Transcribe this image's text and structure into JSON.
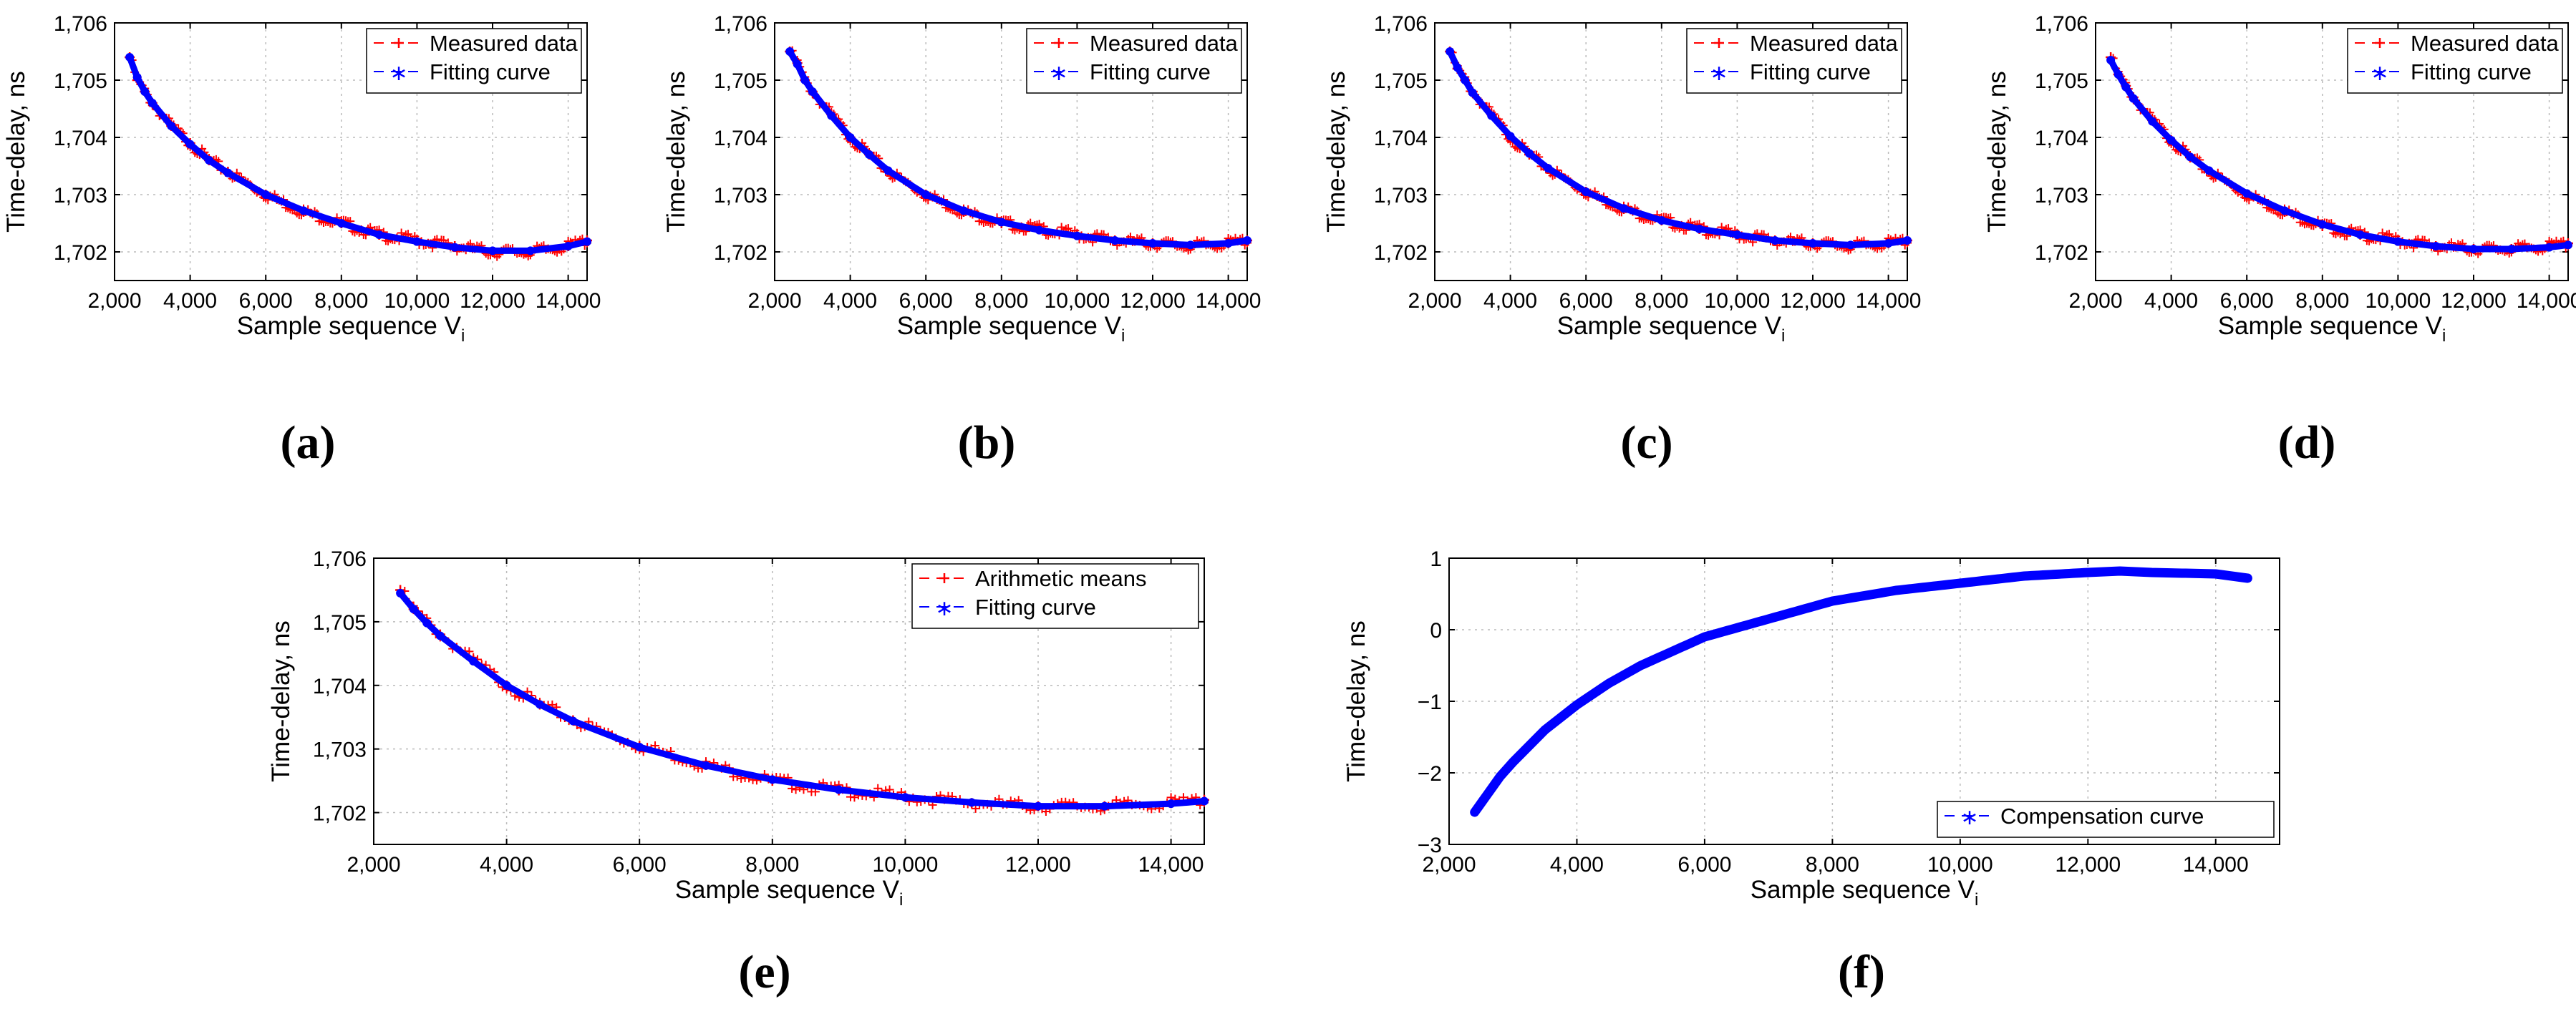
{
  "chart_data": [
    {
      "panel": "(a)",
      "type": "scatter",
      "xlabel": "Sample sequence V",
      "xlabel_sub": "i",
      "ylabel": "Time-delay, ns",
      "xlim": [
        2000,
        14500
      ],
      "ylim": [
        1701.5,
        1706
      ],
      "xticks": [
        "2,000",
        "4,000",
        "6,000",
        "8,000",
        "10,000",
        "12,000",
        "14,000"
      ],
      "yticks": [
        "1,702",
        "1,703",
        "1,704",
        "1,705",
        "1,706"
      ],
      "legend": {
        "position": "top-right",
        "entries": [
          "Measured data",
          "Fitting curve"
        ]
      },
      "series": [
        {
          "name": "Measured data",
          "marker": "+",
          "color": "#ff0000",
          "x": [
            2400,
            2600,
            2800,
            3000,
            3500,
            4000,
            4500,
            5000,
            6000,
            7000,
            8000,
            9000,
            10000,
            11000,
            12000,
            13000,
            14000,
            14500
          ],
          "y": [
            1705.4,
            1705.0,
            1704.8,
            1704.6,
            1704.2,
            1703.9,
            1703.6,
            1703.4,
            1703.0,
            1702.7,
            1702.5,
            1702.3,
            1702.2,
            1702.1,
            1702.0,
            1702.0,
            1702.1,
            1702.2
          ]
        },
        {
          "name": "Fitting curve",
          "marker": "*",
          "color": "#0000ff",
          "x": [
            2400,
            2600,
            2800,
            3000,
            3500,
            4000,
            4500,
            5000,
            6000,
            7000,
            8000,
            9000,
            10000,
            11000,
            12000,
            13000,
            14000,
            14500
          ],
          "y": [
            1705.4,
            1705.05,
            1704.8,
            1704.6,
            1704.2,
            1703.88,
            1703.6,
            1703.38,
            1703.0,
            1702.72,
            1702.5,
            1702.3,
            1702.18,
            1702.08,
            1702.02,
            1702.02,
            1702.1,
            1702.18
          ]
        }
      ]
    },
    {
      "panel": "(b)",
      "type": "scatter",
      "xlabel": "Sample sequence V",
      "xlabel_sub": "i",
      "ylabel": "Time-delay, ns",
      "xlim": [
        2000,
        14500
      ],
      "ylim": [
        1701.5,
        1706
      ],
      "xticks": [
        "2,000",
        "4,000",
        "6,000",
        "8,000",
        "10,000",
        "12,000",
        "14,000"
      ],
      "yticks": [
        "1,702",
        "1,703",
        "1,704",
        "1,705",
        "1,706"
      ],
      "legend": {
        "position": "top-right",
        "entries": [
          "Measured data",
          "Fitting curve"
        ]
      },
      "series": [
        {
          "name": "Measured data",
          "marker": "+",
          "color": "#ff0000",
          "x": [
            2400,
            2600,
            2800,
            3000,
            3500,
            4000,
            4500,
            5000,
            6000,
            7000,
            8000,
            9000,
            10000,
            11000,
            12000,
            13000,
            14000,
            14500
          ],
          "y": [
            1705.5,
            1705.3,
            1705.0,
            1704.8,
            1704.4,
            1704.0,
            1703.7,
            1703.4,
            1703.0,
            1702.7,
            1702.5,
            1702.4,
            1702.3,
            1702.2,
            1702.15,
            1702.1,
            1702.15,
            1702.2
          ]
        },
        {
          "name": "Fitting curve",
          "marker": "*",
          "color": "#0000ff",
          "x": [
            2400,
            2600,
            2800,
            3000,
            3500,
            4000,
            4500,
            5000,
            6000,
            7000,
            8000,
            9000,
            10000,
            11000,
            12000,
            13000,
            14000,
            14500
          ],
          "y": [
            1705.5,
            1705.28,
            1705.0,
            1704.8,
            1704.38,
            1704.0,
            1703.7,
            1703.42,
            1703.0,
            1702.72,
            1702.52,
            1702.38,
            1702.28,
            1702.2,
            1702.15,
            1702.12,
            1702.15,
            1702.2
          ]
        }
      ]
    },
    {
      "panel": "(c)",
      "type": "scatter",
      "xlabel": "Sample sequence V",
      "xlabel_sub": "i",
      "ylabel": "Time-delay, ns",
      "xlim": [
        2000,
        14500
      ],
      "ylim": [
        1701.5,
        1706
      ],
      "xticks": [
        "2,000",
        "4,000",
        "6,000",
        "8,000",
        "10,000",
        "12,000",
        "14,000"
      ],
      "yticks": [
        "1,702",
        "1,703",
        "1,704",
        "1,705",
        "1,706"
      ],
      "legend": {
        "position": "top-right",
        "entries": [
          "Measured data",
          "Fitting curve"
        ]
      },
      "series": [
        {
          "name": "Measured data",
          "marker": "+",
          "color": "#ff0000",
          "x": [
            2400,
            2600,
            2800,
            3000,
            3500,
            4000,
            4500,
            5000,
            6000,
            7000,
            8000,
            9000,
            10000,
            11000,
            12000,
            13000,
            14000,
            14500
          ],
          "y": [
            1705.5,
            1705.2,
            1705.0,
            1704.8,
            1704.4,
            1704.0,
            1703.7,
            1703.45,
            1703.05,
            1702.75,
            1702.55,
            1702.4,
            1702.3,
            1702.2,
            1702.15,
            1702.1,
            1702.15,
            1702.2
          ]
        },
        {
          "name": "Fitting curve",
          "marker": "*",
          "color": "#0000ff",
          "x": [
            2400,
            2600,
            2800,
            3000,
            3500,
            4000,
            4500,
            5000,
            6000,
            7000,
            8000,
            9000,
            10000,
            11000,
            12000,
            13000,
            14000,
            14500
          ],
          "y": [
            1705.5,
            1705.22,
            1705.0,
            1704.78,
            1704.38,
            1704.02,
            1703.72,
            1703.46,
            1703.05,
            1702.76,
            1702.55,
            1702.4,
            1702.3,
            1702.2,
            1702.15,
            1702.12,
            1702.15,
            1702.2
          ]
        }
      ]
    },
    {
      "panel": "(d)",
      "type": "scatter",
      "xlabel": "Sample sequence V",
      "xlabel_sub": "i",
      "ylabel": "Time-delay, ns",
      "xlim": [
        2000,
        14500
      ],
      "ylim": [
        1701.5,
        1706
      ],
      "xticks": [
        "2,000",
        "4,000",
        "6,000",
        "8,000",
        "10,000",
        "12,000",
        "14,000"
      ],
      "yticks": [
        "1,702",
        "1,703",
        "1,704",
        "1,705",
        "1,706"
      ],
      "legend": {
        "position": "top-right",
        "entries": [
          "Measured data",
          "Fitting curve"
        ]
      },
      "series": [
        {
          "name": "Measured data",
          "marker": "+",
          "color": "#ff0000",
          "x": [
            2400,
            2600,
            2800,
            3000,
            3500,
            4000,
            4500,
            5000,
            6000,
            7000,
            8000,
            9000,
            10000,
            11000,
            12000,
            13000,
            14000,
            14500
          ],
          "y": [
            1705.4,
            1705.1,
            1704.9,
            1704.7,
            1704.3,
            1703.95,
            1703.65,
            1703.4,
            1703.0,
            1702.7,
            1702.45,
            1702.3,
            1702.2,
            1702.1,
            1702.05,
            1702.05,
            1702.1,
            1702.15
          ]
        },
        {
          "name": "Fitting curve",
          "marker": "*",
          "color": "#0000ff",
          "x": [
            2400,
            2600,
            2800,
            3000,
            3500,
            4000,
            4500,
            5000,
            6000,
            7000,
            8000,
            9000,
            10000,
            11000,
            12000,
            13000,
            14000,
            14500
          ],
          "y": [
            1705.35,
            1705.1,
            1704.88,
            1704.68,
            1704.28,
            1703.95,
            1703.66,
            1703.42,
            1703.02,
            1702.72,
            1702.48,
            1702.3,
            1702.18,
            1702.1,
            1702.05,
            1702.05,
            1702.08,
            1702.12
          ]
        }
      ]
    },
    {
      "panel": "(e)",
      "type": "scatter",
      "xlabel": "Sample sequence V",
      "xlabel_sub": "i",
      "ylabel": "Time-delay, ns",
      "xlim": [
        2000,
        14500
      ],
      "ylim": [
        1701.5,
        1706
      ],
      "xticks": [
        "2,000",
        "4,000",
        "6,000",
        "8,000",
        "10,000",
        "12,000",
        "14,000"
      ],
      "yticks": [
        "1,702",
        "1,703",
        "1,704",
        "1,705",
        "1,706"
      ],
      "legend": {
        "position": "top-right",
        "entries": [
          "Arithmetic means",
          "Fitting curve"
        ]
      },
      "series": [
        {
          "name": "Arithmetic means",
          "marker": "+",
          "color": "#ff0000",
          "x": [
            2400,
            2600,
            2800,
            3000,
            3500,
            4000,
            4500,
            5000,
            6000,
            7000,
            8000,
            9000,
            10000,
            11000,
            12000,
            13000,
            14000,
            14500
          ],
          "y": [
            1705.5,
            1705.2,
            1705.0,
            1704.8,
            1704.4,
            1704.0,
            1703.7,
            1703.45,
            1703.05,
            1702.75,
            1702.5,
            1702.35,
            1702.25,
            1702.15,
            1702.1,
            1702.1,
            1702.15,
            1702.2
          ]
        },
        {
          "name": "Fitting curve",
          "marker": "*",
          "color": "#0000ff",
          "x": [
            2400,
            2600,
            2800,
            3000,
            3500,
            4000,
            4500,
            5000,
            6000,
            7000,
            8000,
            9000,
            10000,
            11000,
            12000,
            13000,
            14000,
            14500
          ],
          "y": [
            1705.45,
            1705.2,
            1704.98,
            1704.78,
            1704.38,
            1704.0,
            1703.7,
            1703.44,
            1703.03,
            1702.74,
            1702.52,
            1702.36,
            1702.24,
            1702.16,
            1702.1,
            1702.1,
            1702.14,
            1702.18
          ]
        }
      ]
    },
    {
      "panel": "(f)",
      "type": "scatter",
      "xlabel": "Sample sequence V",
      "xlabel_sub": "i",
      "ylabel": "Time-delay, ns",
      "xlim": [
        2000,
        15000
      ],
      "ylim": [
        -3,
        1
      ],
      "xticks": [
        "2,000",
        "4,000",
        "6,000",
        "8,000",
        "10,000",
        "12,000",
        "14,000"
      ],
      "yticks": [
        "−3",
        "−2",
        "−1",
        "0",
        "1"
      ],
      "legend": {
        "position": "bottom-right",
        "entries": [
          "Compensation curve"
        ]
      },
      "series": [
        {
          "name": "Compensation curve",
          "marker": "*",
          "color": "#0000ff",
          "x": [
            2400,
            2600,
            2800,
            3000,
            3500,
            4000,
            4500,
            5000,
            6000,
            7000,
            8000,
            9000,
            10000,
            11000,
            12000,
            12500,
            13000,
            14000,
            14500
          ],
          "y": [
            -2.55,
            -2.3,
            -2.05,
            -1.85,
            -1.4,
            -1.05,
            -0.75,
            -0.5,
            -0.1,
            0.15,
            0.4,
            0.55,
            0.65,
            0.75,
            0.8,
            0.82,
            0.8,
            0.78,
            0.72
          ]
        }
      ]
    }
  ],
  "captions": [
    "(a)",
    "(b)",
    "(c)",
    "(d)",
    "(e)",
    "(f)"
  ]
}
